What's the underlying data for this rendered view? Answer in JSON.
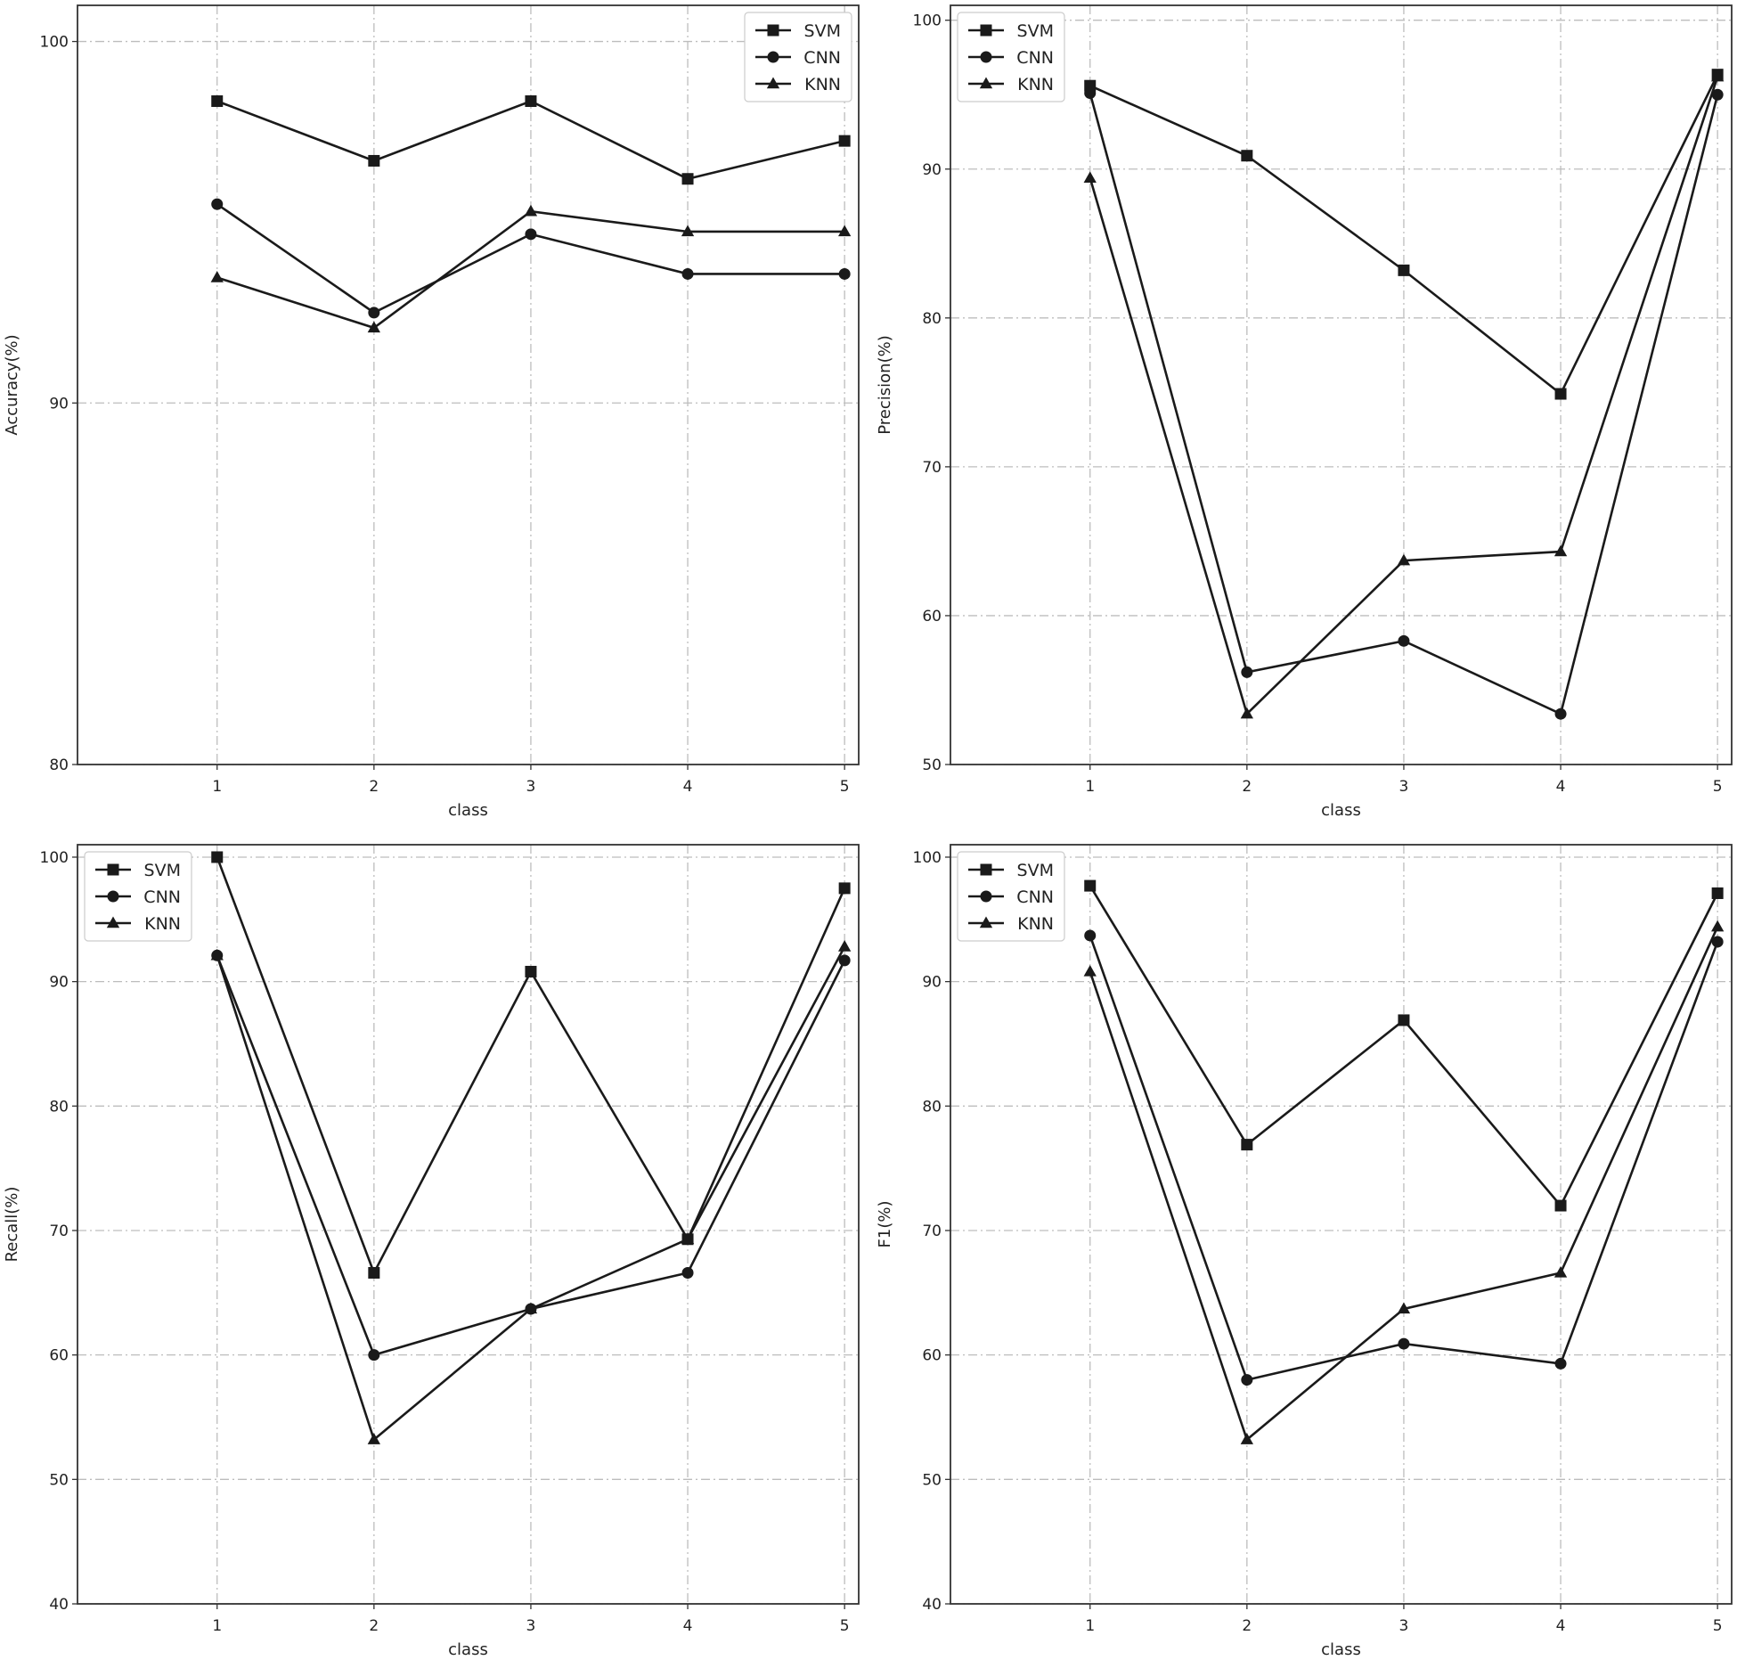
{
  "chart_data": [
    {
      "type": "line",
      "xlabel": "class",
      "ylabel": "Accuracy(%)",
      "x": [
        1,
        2,
        3,
        4,
        5
      ],
      "xlim": [
        0.11,
        5.09
      ],
      "ylim": [
        80,
        101
      ],
      "yticks": [
        80,
        90,
        100
      ],
      "grid": true,
      "legend": "top-right",
      "series": [
        {
          "name": "SVM",
          "marker": "square",
          "values": [
            98.35,
            96.7,
            98.35,
            96.2,
            97.25
          ]
        },
        {
          "name": "CNN",
          "marker": "circle",
          "values": [
            95.5,
            92.5,
            94.67,
            93.57,
            93.57
          ]
        },
        {
          "name": "KNN",
          "marker": "triangle",
          "values": [
            93.47,
            92.08,
            95.3,
            94.74,
            94.74
          ]
        }
      ]
    },
    {
      "type": "line",
      "xlabel": "class",
      "ylabel": "Precision(%)",
      "x": [
        1,
        2,
        3,
        4,
        5
      ],
      "xlim": [
        0.11,
        5.09
      ],
      "ylim": [
        50,
        101
      ],
      "yticks": [
        50,
        60,
        70,
        80,
        90,
        100
      ],
      "grid": true,
      "legend": "top-left",
      "series": [
        {
          "name": "SVM",
          "marker": "square",
          "values": [
            95.6,
            90.9,
            83.2,
            74.9,
            96.35
          ]
        },
        {
          "name": "CNN",
          "marker": "circle",
          "values": [
            95.1,
            56.2,
            58.3,
            53.4,
            95.0
          ]
        },
        {
          "name": "KNN",
          "marker": "triangle",
          "values": [
            89.4,
            53.4,
            63.7,
            64.3,
            96.2
          ]
        }
      ]
    },
    {
      "type": "line",
      "xlabel": "class",
      "ylabel": "Recall(%)",
      "x": [
        1,
        2,
        3,
        4,
        5
      ],
      "xlim": [
        0.11,
        5.09
      ],
      "ylim": [
        40,
        101
      ],
      "yticks": [
        40,
        50,
        60,
        70,
        80,
        90,
        100
      ],
      "grid": true,
      "legend": "top-left",
      "series": [
        {
          "name": "SVM",
          "marker": "square",
          "values": [
            100,
            66.6,
            90.8,
            69.3,
            97.5
          ]
        },
        {
          "name": "CNN",
          "marker": "circle",
          "values": [
            92.1,
            60.0,
            63.7,
            66.6,
            91.7
          ]
        },
        {
          "name": "KNN",
          "marker": "triangle",
          "values": [
            92.1,
            53.2,
            63.7,
            69.3,
            92.8
          ]
        }
      ]
    },
    {
      "type": "line",
      "xlabel": "class",
      "ylabel": "F1(%)",
      "x": [
        1,
        2,
        3,
        4,
        5
      ],
      "xlim": [
        0.11,
        5.09
      ],
      "ylim": [
        40,
        101
      ],
      "yticks": [
        40,
        50,
        60,
        70,
        80,
        90,
        100
      ],
      "grid": true,
      "legend": "top-left",
      "series": [
        {
          "name": "SVM",
          "marker": "square",
          "values": [
            97.7,
            76.9,
            86.9,
            72.0,
            97.1
          ]
        },
        {
          "name": "CNN",
          "marker": "circle",
          "values": [
            93.7,
            58.0,
            60.9,
            59.3,
            93.2
          ]
        },
        {
          "name": "KNN",
          "marker": "triangle",
          "values": [
            90.8,
            53.2,
            63.7,
            66.6,
            94.4
          ]
        }
      ]
    }
  ],
  "colors": {
    "line": "#1a1a1a",
    "grid": "#bdbdbd",
    "axes": "#333333"
  }
}
